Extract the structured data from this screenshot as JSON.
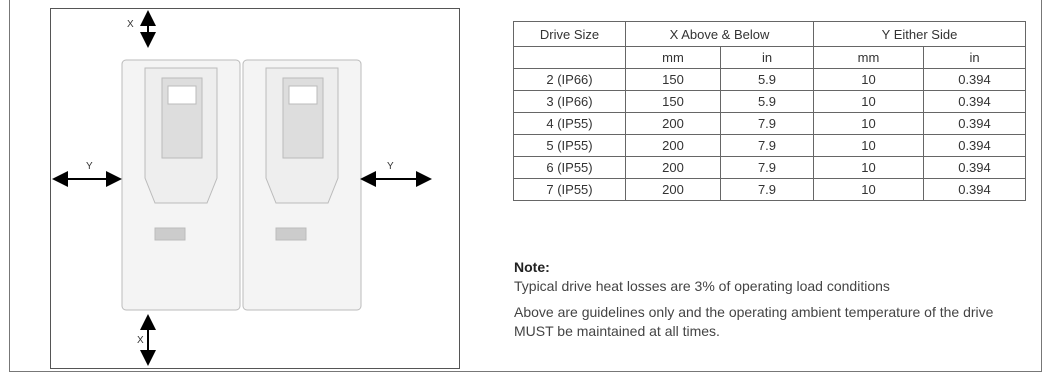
{
  "diagram": {
    "labels": [
      "X",
      "Y",
      "Y",
      "X"
    ]
  },
  "table": {
    "header": [
      "Drive Size",
      "X Above & Below",
      "Y Either Side"
    ],
    "subheader": [
      "mm",
      "in",
      "mm",
      "in"
    ],
    "rows": [
      [
        "2 (IP66)",
        150,
        5.9,
        10,
        0.394
      ],
      [
        "3 (IP66)",
        150,
        5.9,
        10,
        0.394
      ],
      [
        "4 (IP55)",
        200,
        7.9,
        10,
        0.394
      ],
      [
        "5 (IP55)",
        200,
        7.9,
        10,
        0.394
      ],
      [
        "6 (IP55)",
        200,
        7.9,
        10,
        0.394
      ],
      [
        "7 (IP55)",
        200,
        7.9,
        10,
        0.394
      ]
    ]
  },
  "note": {
    "title": "Note:",
    "lines": [
      "Typical drive heat losses are 3% of operating load conditions",
      "Above are guidelines only and the operating ambient temperature of the drive MUST be maintained at all times."
    ]
  }
}
